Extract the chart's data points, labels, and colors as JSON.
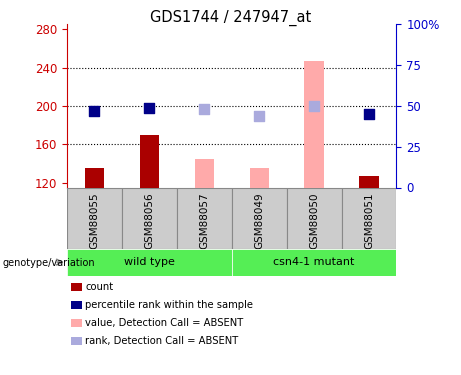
{
  "title": "GDS1744 / 247947_at",
  "samples": [
    "GSM88055",
    "GSM88056",
    "GSM88057",
    "GSM88049",
    "GSM88050",
    "GSM88051"
  ],
  "ylim_left": [
    115,
    285
  ],
  "ylim_right": [
    0,
    100
  ],
  "yticks_left": [
    120,
    160,
    200,
    240,
    280
  ],
  "yticks_right": [
    0,
    25,
    50,
    75,
    100
  ],
  "ytick_labels_right": [
    "0",
    "25",
    "50",
    "75",
    "100%"
  ],
  "bar_values": [
    135,
    170,
    145,
    135,
    247,
    127
  ],
  "bar_bottom": 115,
  "bar_color_present": "#AA0000",
  "bar_color_absent": "#FFAAAA",
  "bar_absent": [
    false,
    false,
    true,
    true,
    true,
    false
  ],
  "rank_values_percent": [
    47,
    49,
    48,
    44,
    50,
    45
  ],
  "rank_absent": [
    false,
    false,
    true,
    true,
    true,
    false
  ],
  "rank_color_present": "#000088",
  "rank_color_absent": "#AAAADD",
  "bar_width": 0.35,
  "rank_marker_size": 55,
  "group_color": "#55EE55",
  "group_info": [
    {
      "name": "wild type",
      "start": 0,
      "end": 2
    },
    {
      "name": "csn4-1 mutant",
      "start": 3,
      "end": 5
    }
  ],
  "genotype_label": "genotype/variation",
  "legend_items": [
    {
      "label": "count",
      "color": "#AA0000"
    },
    {
      "label": "percentile rank within the sample",
      "color": "#000088"
    },
    {
      "label": "value, Detection Call = ABSENT",
      "color": "#FFAAAA"
    },
    {
      "label": "rank, Detection Call = ABSENT",
      "color": "#AAAADD"
    }
  ],
  "left_axis_color": "#CC0000",
  "right_axis_color": "#0000CC",
  "grid_color": "#000000",
  "sample_box_color": "#CCCCCC",
  "sample_box_edge": "#888888"
}
